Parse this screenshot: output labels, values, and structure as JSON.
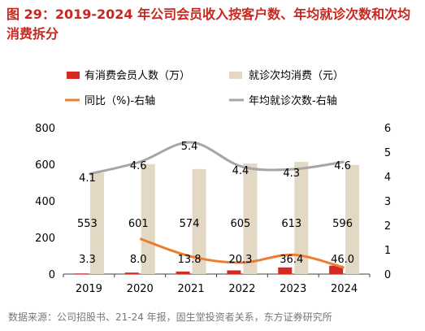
{
  "figure": {
    "title": "图 29：2019-2024 年公司会员收入按客户数、年均就诊次数和次均消费拆分",
    "source": "数据来源：公司招股书、21-24 年报，固生堂投资者关系，东方证券研究所"
  },
  "chart_data": {
    "type": "bar",
    "categories": [
      "2019",
      "2020",
      "2021",
      "2022",
      "2023",
      "2024"
    ],
    "series": [
      {
        "name": "有消费会员人数（万）",
        "kind": "bar",
        "axis": "left",
        "color": "#d42a22",
        "values": [
          3.3,
          8.0,
          13.8,
          20.3,
          36.4,
          46.0
        ]
      },
      {
        "name": "就诊次均消费（元）",
        "kind": "bar",
        "axis": "left",
        "color": "#e2d8c3",
        "values": [
          553,
          601,
          574,
          605,
          613,
          596
        ]
      },
      {
        "name": "同比（%)-右轴",
        "kind": "line",
        "axis": "right",
        "color": "#ed7d31",
        "values": [
          null,
          1.45,
          0.72,
          0.47,
          0.79,
          0.26
        ]
      },
      {
        "name": "年均就诊次数-右轴",
        "kind": "line",
        "axis": "right",
        "color": "#a6a6a6",
        "values": [
          4.1,
          4.6,
          5.4,
          4.4,
          4.3,
          4.6
        ]
      }
    ],
    "data_labels": {
      "members": [
        "3.3",
        "8.0",
        "13.8",
        "20.3",
        "36.4",
        "46.0"
      ],
      "spend": [
        "553",
        "601",
        "574",
        "605",
        "613",
        "596"
      ],
      "visits": [
        "4.1",
        "4.6",
        "5.4",
        "4.4",
        "4.3",
        "4.6"
      ]
    },
    "ylim_left": [
      0,
      800
    ],
    "ylim_right": [
      0,
      6
    ],
    "yticks_left": [
      "0",
      "200",
      "400",
      "600",
      "800"
    ],
    "yticks_right": [
      "0",
      "1",
      "2",
      "3",
      "4",
      "5",
      "6"
    ],
    "grid": false,
    "legend_position": "top"
  }
}
